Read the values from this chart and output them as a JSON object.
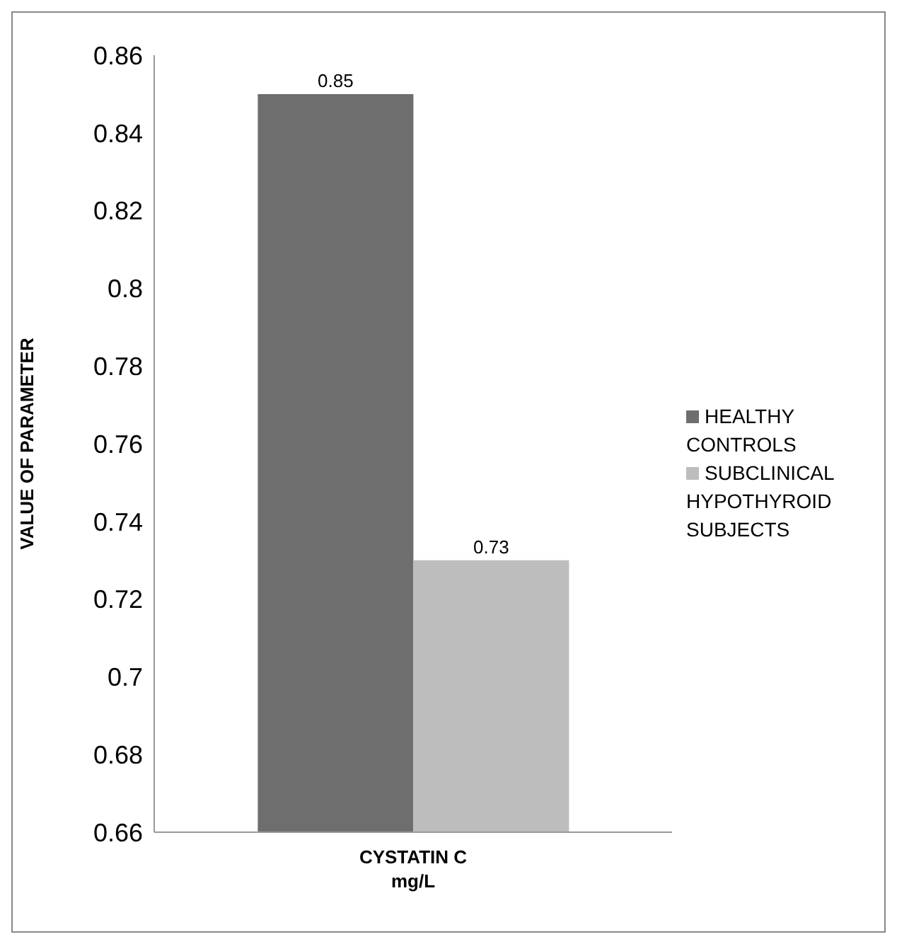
{
  "chart_data": {
    "type": "bar",
    "ylabel": "VALUE OF PARAMETER",
    "categories": [
      "CYSTATIN C\nmg/L"
    ],
    "series": [
      {
        "name": "HEALTHY CONTROLS",
        "color": "#6e6e6e",
        "values": [
          0.85
        ]
      },
      {
        "name": "SUBCLINICAL HYPOTHYROID SUBJECTS",
        "color": "#bdbdbd",
        "values": [
          0.73
        ]
      }
    ],
    "ylim": [
      0.66,
      0.86
    ],
    "yticks": [
      0.66,
      0.68,
      0.7,
      0.72,
      0.74,
      0.76,
      0.78,
      0.8,
      0.82,
      0.84,
      0.86
    ],
    "data_labels": true,
    "legend": "right",
    "grid": false
  }
}
